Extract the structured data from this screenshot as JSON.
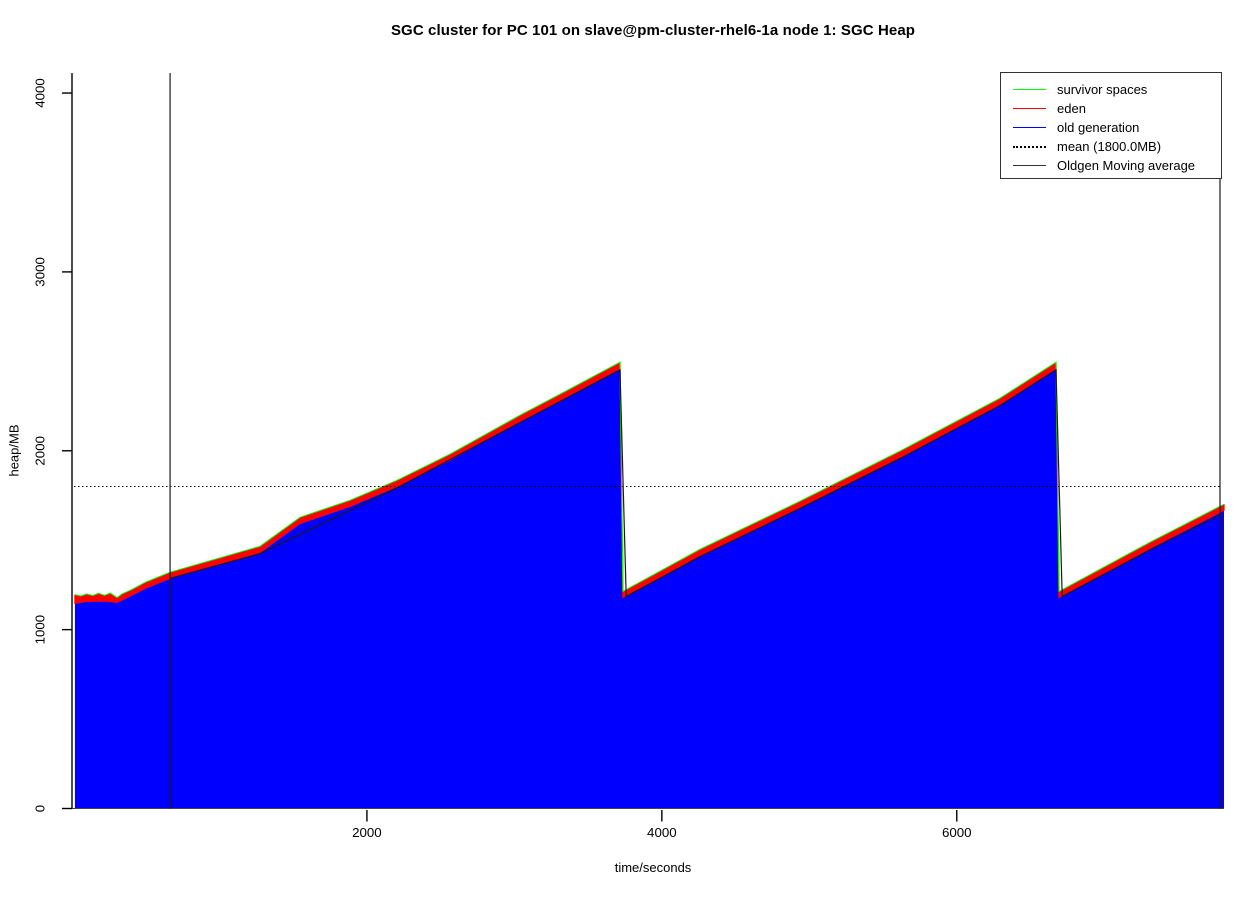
{
  "page": {
    "background": "#ffffff"
  },
  "chart_data": {
    "type": "area",
    "title": "SGC cluster for PC 101 on slave@pm-cluster-rhel6-1a node 1: SGC Heap",
    "xlabel": "time/seconds",
    "ylabel": "heap/MB",
    "xlim": [
      0,
      7880
    ],
    "ylim": [
      0,
      4112
    ],
    "xticks": [
      2000,
      4000,
      6000
    ],
    "yticks": [
      0,
      1000,
      2000,
      3000,
      4000
    ],
    "grid": false,
    "legend_position": "topright",
    "legend": [
      {
        "label": "survivor spaces",
        "color": "#00ff00",
        "style": "solid"
      },
      {
        "label": "eden",
        "color": "#ff0000",
        "style": "solid"
      },
      {
        "label": "old generation",
        "color": "#0000ff",
        "style": "solid"
      },
      {
        "label": "mean (1800.0MB)",
        "color": "#000000",
        "style": "dotted"
      },
      {
        "label": "Oldgen Moving average",
        "color": "#333333",
        "style": "solid"
      }
    ],
    "mean_mb": 1800.0,
    "window_vlines_t": [
      665,
      7785
    ],
    "series": [
      {
        "name": "old generation",
        "render": "filled-area",
        "color": "#0000ff",
        "points": [
          [
            20,
            1147
          ],
          [
            100,
            1158
          ],
          [
            220,
            1160
          ],
          [
            305,
            1152
          ],
          [
            400,
            1190
          ],
          [
            500,
            1232
          ],
          [
            665,
            1287
          ],
          [
            1275,
            1432
          ],
          [
            1546,
            1594
          ],
          [
            1885,
            1689
          ],
          [
            2204,
            1801
          ],
          [
            2563,
            1947
          ],
          [
            3038,
            2165
          ],
          [
            3309,
            2282
          ],
          [
            3716,
            2461
          ],
          [
            3736,
            1180
          ],
          [
            4258,
            1415
          ],
          [
            4937,
            1684
          ],
          [
            5615,
            1964
          ],
          [
            6293,
            2260
          ],
          [
            6673,
            2461
          ],
          [
            6693,
            1180
          ],
          [
            7310,
            1454
          ],
          [
            7812,
            1667
          ]
        ]
      },
      {
        "name": "eden",
        "render": "band-above-old-generation",
        "color": "#ff0000",
        "points": [
          [
            20,
            1192
          ],
          [
            60,
            1184
          ],
          [
            100,
            1196
          ],
          [
            140,
            1186
          ],
          [
            180,
            1199
          ],
          [
            220,
            1188
          ],
          [
            260,
            1200
          ],
          [
            305,
            1175
          ],
          [
            340,
            1196
          ],
          [
            400,
            1218
          ],
          [
            500,
            1262
          ],
          [
            665,
            1317
          ],
          [
            1275,
            1462
          ],
          [
            1546,
            1624
          ],
          [
            1885,
            1719
          ],
          [
            2204,
            1831
          ],
          [
            2563,
            1977
          ],
          [
            3038,
            2195
          ],
          [
            3309,
            2312
          ],
          [
            3716,
            2491
          ],
          [
            3736,
            1210
          ],
          [
            4258,
            1445
          ],
          [
            4937,
            1714
          ],
          [
            5615,
            1994
          ],
          [
            6293,
            2290
          ],
          [
            6673,
            2491
          ],
          [
            6693,
            1210
          ],
          [
            7310,
            1484
          ],
          [
            7812,
            1697
          ]
        ]
      },
      {
        "name": "survivor spaces",
        "render": "line-above-eden",
        "color": "#00ff00",
        "offset_above_eden_mb": 4
      },
      {
        "name": "Oldgen Moving average",
        "render": "line",
        "color": "#1a1a1a",
        "points": [
          [
            665,
            1287
          ],
          [
            1275,
            1425
          ],
          [
            2204,
            1793
          ],
          [
            3038,
            2158
          ],
          [
            3716,
            2452
          ],
          [
            3758,
            1186
          ],
          [
            4258,
            1408
          ],
          [
            4937,
            1678
          ],
          [
            5615,
            1956
          ],
          [
            6293,
            2253
          ],
          [
            6673,
            2452
          ],
          [
            6715,
            1186
          ],
          [
            7310,
            1446
          ],
          [
            7785,
            1642
          ]
        ]
      }
    ]
  }
}
